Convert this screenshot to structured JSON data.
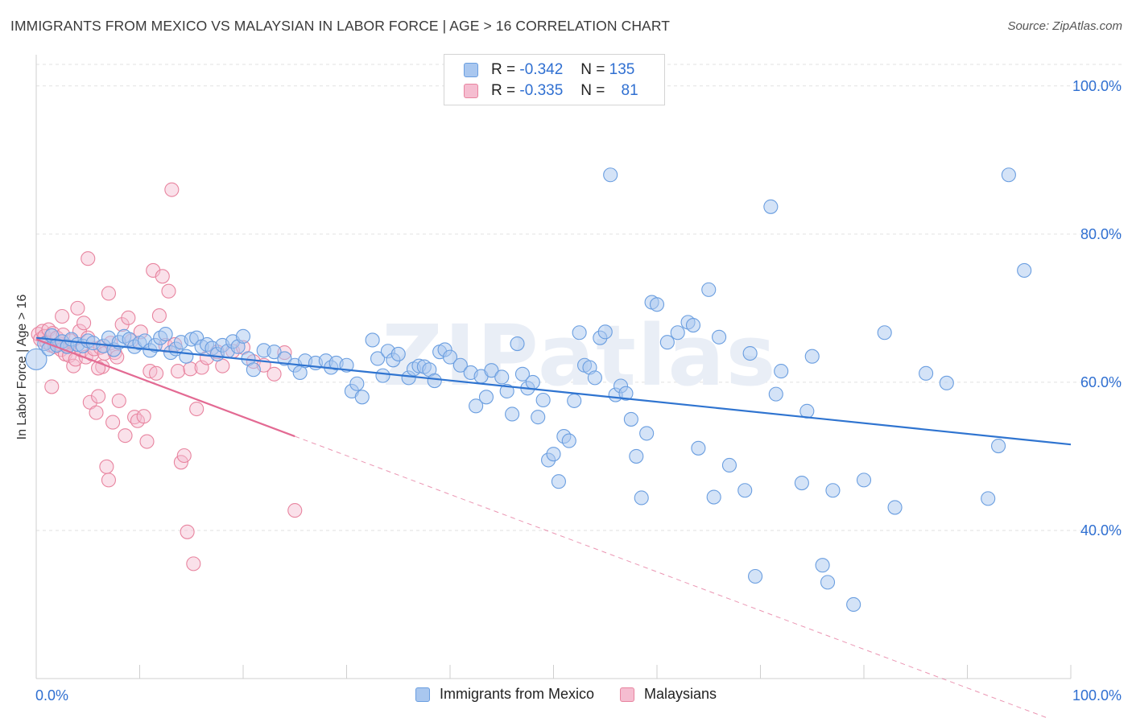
{
  "header": {
    "title": "IMMIGRANTS FROM MEXICO VS MALAYSIAN IN LABOR FORCE | AGE > 16 CORRELATION CHART",
    "source": "Source: ZipAtlas.com"
  },
  "watermark": "ZIPatlas",
  "legend_top": {
    "r_label": "R =",
    "n_label": "N =",
    "rows": [
      {
        "r": "-0.342",
        "n": "135"
      },
      {
        "r": "-0.335",
        "n": "81"
      }
    ]
  },
  "colors": {
    "blue_fill": "#a9c7ef",
    "blue_stroke": "#6a9ee0",
    "blue_line": "#2f74d0",
    "pink_fill": "#f5bdd0",
    "pink_stroke": "#e8849f",
    "pink_line": "#e36a93",
    "axis_text": "#2f6fd1",
    "grid": "#e2e2e2"
  },
  "chart_data": {
    "type": "scatter",
    "title": "IMMIGRANTS FROM MEXICO VS MALAYSIAN IN LABOR FORCE | AGE > 16 CORRELATION CHART",
    "xlabel": "",
    "ylabel": "In Labor Force | Age > 16",
    "xlim": [
      0,
      100
    ],
    "ylim": [
      20,
      104
    ],
    "x_tick_labels": [
      "0.0%",
      "100.0%"
    ],
    "y_ticks": [
      40,
      60,
      80,
      100
    ],
    "y_tick_labels": [
      "40.0%",
      "60.0%",
      "80.0%",
      "100.0%"
    ],
    "grid": true,
    "legend_placement": "bottom",
    "series": [
      {
        "name": "Immigrants from Mexico",
        "r": -0.342,
        "n": 135,
        "trend": {
          "x": [
            0,
            100
          ],
          "y": [
            66.0,
            51.6
          ]
        },
        "points": [
          [
            0.0,
            63.1
          ],
          [
            0.8,
            65.2
          ],
          [
            1.2,
            64.5
          ],
          [
            1.5,
            66.3
          ],
          [
            2.0,
            65.0
          ],
          [
            2.5,
            65.5
          ],
          [
            3.0,
            64.8
          ],
          [
            3.4,
            65.8
          ],
          [
            4.0,
            65.1
          ],
          [
            4.5,
            64.9
          ],
          [
            5.0,
            65.6
          ],
          [
            5.5,
            65.3
          ],
          [
            6.5,
            64.9
          ],
          [
            7.0,
            66.0
          ],
          [
            7.5,
            64.4
          ],
          [
            8.0,
            65.4
          ],
          [
            8.5,
            66.2
          ],
          [
            9.0,
            65.8
          ],
          [
            9.5,
            64.8
          ],
          [
            10.0,
            65.3
          ],
          [
            10.5,
            65.6
          ],
          [
            11.0,
            64.3
          ],
          [
            11.5,
            65.0
          ],
          [
            12.0,
            66.0
          ],
          [
            12.5,
            66.5
          ],
          [
            13.0,
            64.0
          ],
          [
            13.5,
            64.5
          ],
          [
            14.0,
            65.4
          ],
          [
            14.5,
            63.5
          ],
          [
            15.0,
            65.8
          ],
          [
            15.5,
            66.0
          ],
          [
            16.0,
            64.8
          ],
          [
            16.5,
            65.1
          ],
          [
            17.0,
            64.6
          ],
          [
            17.5,
            63.8
          ],
          [
            18.0,
            65.0
          ],
          [
            18.5,
            64.2
          ],
          [
            19.0,
            65.5
          ],
          [
            19.5,
            64.8
          ],
          [
            20.0,
            66.2
          ],
          [
            20.5,
            63.2
          ],
          [
            21.0,
            61.7
          ],
          [
            22.0,
            64.3
          ],
          [
            23.0,
            64.1
          ],
          [
            24.0,
            63.2
          ],
          [
            25.0,
            62.3
          ],
          [
            25.5,
            61.3
          ],
          [
            26.0,
            62.9
          ],
          [
            27.0,
            62.6
          ],
          [
            28.0,
            62.9
          ],
          [
            28.5,
            62.0
          ],
          [
            29.0,
            62.6
          ],
          [
            30.0,
            62.3
          ],
          [
            30.5,
            58.8
          ],
          [
            31.0,
            59.8
          ],
          [
            31.5,
            58.0
          ],
          [
            32.5,
            65.7
          ],
          [
            33.0,
            63.2
          ],
          [
            33.5,
            60.9
          ],
          [
            34.0,
            64.2
          ],
          [
            34.5,
            63.0
          ],
          [
            35.0,
            63.8
          ],
          [
            36.0,
            60.6
          ],
          [
            36.5,
            61.8
          ],
          [
            37.0,
            62.2
          ],
          [
            37.5,
            62.1
          ],
          [
            38.0,
            61.7
          ],
          [
            38.5,
            60.2
          ],
          [
            39.0,
            64.1
          ],
          [
            39.5,
            64.4
          ],
          [
            40.0,
            63.4
          ],
          [
            41.0,
            62.3
          ],
          [
            42.0,
            61.3
          ],
          [
            42.5,
            56.8
          ],
          [
            43.0,
            60.8
          ],
          [
            43.5,
            58.0
          ],
          [
            44.0,
            61.6
          ],
          [
            45.0,
            60.7
          ],
          [
            45.5,
            58.8
          ],
          [
            46.0,
            55.7
          ],
          [
            46.5,
            65.2
          ],
          [
            47.0,
            61.1
          ],
          [
            47.5,
            59.2
          ],
          [
            48.0,
            60.0
          ],
          [
            48.5,
            55.3
          ],
          [
            49.0,
            57.6
          ],
          [
            49.5,
            49.5
          ],
          [
            50.0,
            50.3
          ],
          [
            50.5,
            46.6
          ],
          [
            51.0,
            52.7
          ],
          [
            51.5,
            52.1
          ],
          [
            52.0,
            57.5
          ],
          [
            52.5,
            66.7
          ],
          [
            53.0,
            62.3
          ],
          [
            53.5,
            62.0
          ],
          [
            54.0,
            60.6
          ],
          [
            54.5,
            66.0
          ],
          [
            55.0,
            66.8
          ],
          [
            55.5,
            88.0
          ],
          [
            56.0,
            58.3
          ],
          [
            56.5,
            59.5
          ],
          [
            57.0,
            58.5
          ],
          [
            57.5,
            55.0
          ],
          [
            58.0,
            50.0
          ],
          [
            58.5,
            44.4
          ],
          [
            59.0,
            53.1
          ],
          [
            59.5,
            70.8
          ],
          [
            60.0,
            70.5
          ],
          [
            61.0,
            65.4
          ],
          [
            62.0,
            66.7
          ],
          [
            63.0,
            68.1
          ],
          [
            63.5,
            67.7
          ],
          [
            64.0,
            51.1
          ],
          [
            65.0,
            72.5
          ],
          [
            65.5,
            44.5
          ],
          [
            66.0,
            66.1
          ],
          [
            67.0,
            48.8
          ],
          [
            68.5,
            45.4
          ],
          [
            69.0,
            63.9
          ],
          [
            69.5,
            33.8
          ],
          [
            71.0,
            83.7
          ],
          [
            71.5,
            58.4
          ],
          [
            72.0,
            61.5
          ],
          [
            74.0,
            46.4
          ],
          [
            74.5,
            56.1
          ],
          [
            75.0,
            63.5
          ],
          [
            76.0,
            35.3
          ],
          [
            76.5,
            33.0
          ],
          [
            77.0,
            45.4
          ],
          [
            79.0,
            30.0
          ],
          [
            80.0,
            46.8
          ],
          [
            82.0,
            66.7
          ],
          [
            83.0,
            43.1
          ],
          [
            86.0,
            61.2
          ],
          [
            88.0,
            59.9
          ],
          [
            92.0,
            44.3
          ],
          [
            93.0,
            51.4
          ],
          [
            94.0,
            88.0
          ],
          [
            95.5,
            75.1
          ]
        ]
      },
      {
        "name": "Malaysians",
        "r": -0.335,
        "n": 81,
        "trend": {
          "x": [
            0,
            25
          ],
          "y": [
            65.8,
            52.7
          ]
        },
        "trend_dashed": {
          "x": [
            25,
            100
          ],
          "y": [
            52.7,
            13.5
          ]
        },
        "points": [
          [
            0.2,
            66.5
          ],
          [
            0.4,
            65.8
          ],
          [
            0.6,
            66.9
          ],
          [
            0.8,
            66.2
          ],
          [
            1.0,
            65.4
          ],
          [
            1.2,
            67.1
          ],
          [
            1.4,
            65.0
          ],
          [
            1.6,
            66.6
          ],
          [
            1.8,
            64.8
          ],
          [
            2.0,
            66.0
          ],
          [
            2.2,
            65.2
          ],
          [
            2.4,
            64.4
          ],
          [
            2.6,
            66.4
          ],
          [
            2.8,
            63.8
          ],
          [
            3.0,
            64.9
          ],
          [
            3.2,
            63.6
          ],
          [
            3.4,
            65.6
          ],
          [
            3.6,
            62.2
          ],
          [
            3.8,
            63.1
          ],
          [
            4.0,
            70.0
          ],
          [
            4.2,
            66.9
          ],
          [
            4.4,
            64.3
          ],
          [
            4.6,
            68.0
          ],
          [
            4.8,
            63.4
          ],
          [
            5.0,
            66.0
          ],
          [
            5.2,
            57.3
          ],
          [
            5.4,
            63.8
          ],
          [
            5.6,
            64.5
          ],
          [
            5.8,
            55.9
          ],
          [
            6.0,
            58.1
          ],
          [
            6.2,
            64.7
          ],
          [
            6.4,
            62.1
          ],
          [
            6.6,
            63.9
          ],
          [
            6.8,
            48.6
          ],
          [
            7.0,
            46.8
          ],
          [
            7.2,
            65.3
          ],
          [
            7.4,
            54.6
          ],
          [
            7.6,
            64.0
          ],
          [
            7.8,
            63.4
          ],
          [
            8.0,
            57.5
          ],
          [
            8.3,
            67.8
          ],
          [
            8.6,
            52.8
          ],
          [
            8.9,
            68.7
          ],
          [
            9.2,
            65.6
          ],
          [
            9.5,
            55.3
          ],
          [
            9.8,
            54.8
          ],
          [
            10.1,
            66.8
          ],
          [
            10.4,
            55.4
          ],
          [
            10.7,
            52.0
          ],
          [
            11.0,
            61.5
          ],
          [
            11.3,
            75.1
          ],
          [
            11.6,
            61.2
          ],
          [
            11.9,
            69.0
          ],
          [
            12.2,
            74.3
          ],
          [
            12.5,
            65.0
          ],
          [
            12.8,
            72.3
          ],
          [
            13.1,
            86.0
          ],
          [
            13.4,
            65.1
          ],
          [
            13.7,
            61.5
          ],
          [
            14.0,
            49.2
          ],
          [
            14.3,
            50.1
          ],
          [
            14.6,
            39.8
          ],
          [
            14.9,
            61.8
          ],
          [
            15.2,
            35.5
          ],
          [
            15.5,
            56.4
          ],
          [
            16.0,
            62.0
          ],
          [
            16.5,
            63.3
          ],
          [
            17.5,
            64.1
          ],
          [
            18.0,
            62.2
          ],
          [
            19.0,
            64.2
          ],
          [
            20.0,
            64.7
          ],
          [
            21.0,
            62.8
          ],
          [
            22.0,
            62.3
          ],
          [
            23.0,
            61.1
          ],
          [
            24.0,
            64.0
          ],
          [
            25.0,
            42.7
          ],
          [
            2.5,
            68.9
          ],
          [
            5.0,
            76.7
          ],
          [
            1.5,
            59.4
          ],
          [
            6.0,
            61.9
          ],
          [
            7.0,
            72.0
          ]
        ]
      }
    ]
  }
}
